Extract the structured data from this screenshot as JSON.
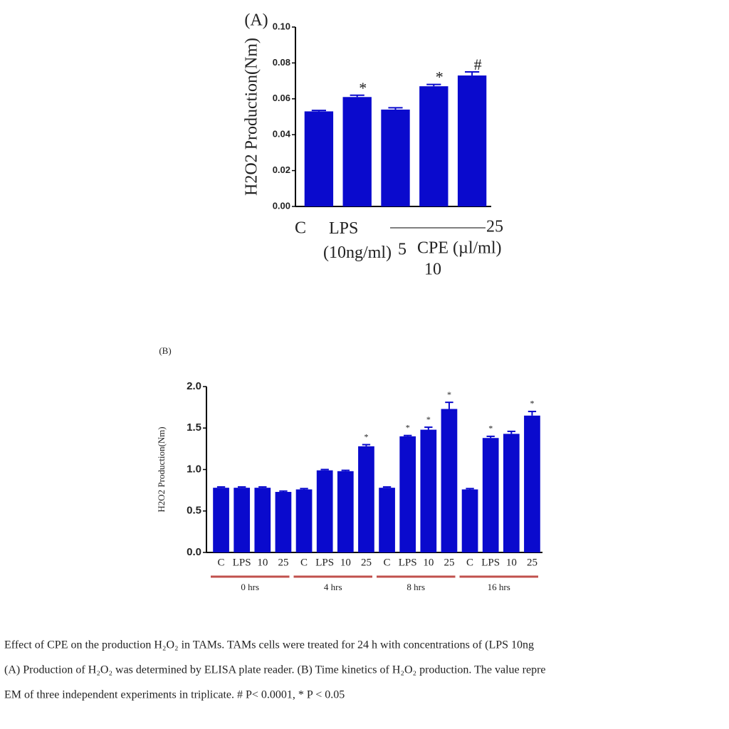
{
  "chart_data": [
    {
      "type": "bar",
      "panel": "(A)",
      "ylabel": "H2O2 Production(Nm)",
      "categories": [
        "C",
        "LPS (10ng/ml)",
        "5",
        "10",
        "25"
      ],
      "group_label": "CPE (µl/ml)",
      "series": [
        {
          "name": "H2O2",
          "color": "#0a0acd",
          "values": [
            0.053,
            0.061,
            0.054,
            0.067,
            0.073
          ],
          "errors": [
            0.0005,
            0.001,
            0.001,
            0.001,
            0.002
          ],
          "annotations": [
            null,
            "*",
            null,
            "*",
            "#"
          ]
        }
      ],
      "ylim": [
        0,
        0.1
      ],
      "yticks": [
        {
          "value": 0,
          "label": "0.00"
        },
        {
          "value": 0.02,
          "label": "0.02"
        },
        {
          "value": 0.04,
          "label": "0.04"
        },
        {
          "value": 0.06,
          "label": "0.06"
        },
        {
          "value": 0.08,
          "label": "0.08"
        },
        {
          "value": 0.1,
          "label": "0.10"
        }
      ]
    },
    {
      "type": "bar",
      "panel": "(B)",
      "ylabel": "H2O2 Production(Nm)",
      "categories": [
        "C",
        "LPS",
        "10",
        "25",
        "C",
        "LPS",
        "10",
        "25",
        "C",
        "LPS",
        "10",
        "25",
        "C",
        "LPS",
        "10",
        "25"
      ],
      "groups": [
        "0 hrs",
        "4 hrs",
        "8 hrs",
        "16 hrs"
      ],
      "series": [
        {
          "name": "H2O2",
          "color": "#0a0acd",
          "values": [
            0.78,
            0.78,
            0.78,
            0.73,
            0.76,
            0.99,
            0.98,
            1.28,
            0.78,
            1.4,
            1.48,
            1.73,
            0.76,
            1.38,
            1.43,
            1.65
          ],
          "errors": [
            0.01,
            0.01,
            0.01,
            0.01,
            0.01,
            0.01,
            0.01,
            0.02,
            0.01,
            0.01,
            0.03,
            0.08,
            0.01,
            0.02,
            0.03,
            0.05
          ],
          "annotations": [
            null,
            null,
            null,
            null,
            null,
            null,
            null,
            "*",
            null,
            "*",
            "*",
            "*",
            null,
            "*",
            null,
            "*"
          ]
        }
      ],
      "ylim": [
        0,
        2
      ],
      "yticks": [
        {
          "value": 0,
          "label": "0.0"
        },
        {
          "value": 0.5,
          "label": "0.5"
        },
        {
          "value": 1,
          "label": "1.0"
        },
        {
          "value": 1.5,
          "label": "1.5"
        },
        {
          "value": 2,
          "label": "2.0"
        }
      ]
    }
  ],
  "caption": [
    "Effect of CPE on the production H₂O₂ in TAMs. TAMs cells were treated for 24 h with concentrations of (LPS 10ng",
    "(A) Production of H₂O₂ was determined by ELISA plate reader. (B) Time kinetics of H₂O₂ production. The value repre",
    "EM of three independent experiments in triplicate. # P< 0.0001, * P < 0.05"
  ]
}
